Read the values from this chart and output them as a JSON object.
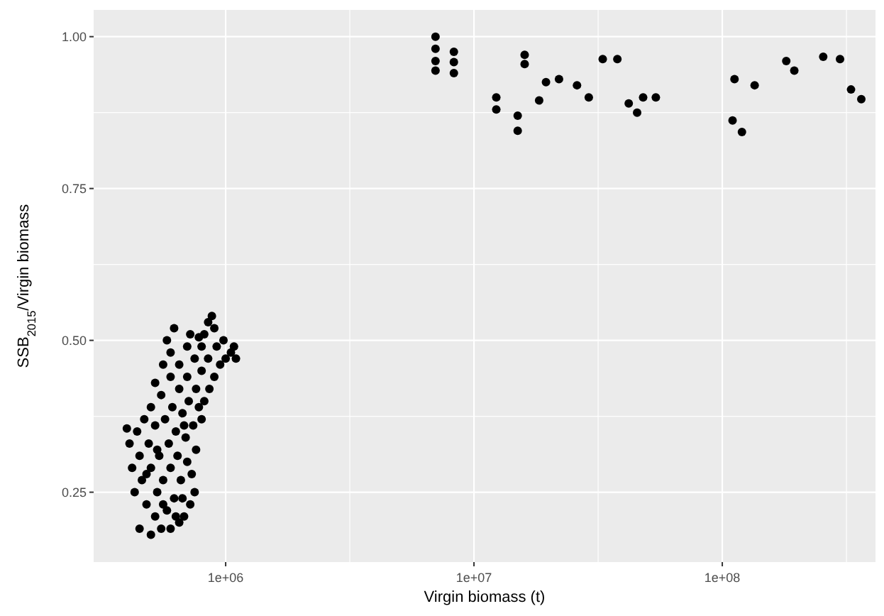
{
  "chart_data": {
    "type": "scatter",
    "xlabel": "Virgin biomass (t)",
    "ylabel": "SSB$_{2015}$/Virgin biomass",
    "log": "x",
    "grid": true,
    "marker": "circle",
    "xlim": [
      294000,
      414000000
    ],
    "ylim": [
      0.135,
      1.044
    ],
    "xticks": [
      {
        "value": 1000000,
        "label": "1e+06"
      },
      {
        "value": 3162278,
        "label": null
      },
      {
        "value": 10000000,
        "label": "1e+07"
      },
      {
        "value": 31622777,
        "label": null
      },
      {
        "value": 100000000,
        "label": "1e+08"
      },
      {
        "value": 316227766,
        "label": null
      }
    ],
    "yticks": [
      {
        "value": 0.25,
        "label": "0.25"
      },
      {
        "value": 0.375,
        "label": null
      },
      {
        "value": 0.5,
        "label": "0.50"
      },
      {
        "value": 0.625,
        "label": null
      },
      {
        "value": 0.75,
        "label": "0.75"
      },
      {
        "value": 0.875,
        "label": null
      },
      {
        "value": 1.0,
        "label": "1.00"
      }
    ],
    "series": [
      {
        "color": "#000000",
        "x": [
          450000,
          500000,
          550000,
          600000,
          650000,
          520000,
          680000,
          480000,
          580000,
          720000,
          430000,
          530000,
          620000,
          750000,
          460000,
          560000,
          660000,
          730000,
          420000,
          500000,
          600000,
          700000,
          450000,
          540000,
          640000,
          760000,
          410000,
          490000,
          590000,
          690000,
          440000,
          520000,
          630000,
          740000,
          400000,
          470000,
          570000,
          670000,
          800000,
          500000,
          610000,
          710000,
          820000,
          550000,
          650000,
          760000,
          860000,
          520000,
          600000,
          700000,
          800000,
          900000,
          560000,
          650000,
          750000,
          850000,
          950000,
          600000,
          700000,
          800000,
          920000,
          1000000,
          620000,
          720000,
          820000,
          900000,
          880000,
          580000,
          980000,
          1050000,
          850000,
          780000,
          680000,
          780000,
          530000,
          670000,
          480000,
          560000,
          630000,
          1100000,
          1080000,
          7000000,
          7000000,
          7000000,
          7000000,
          8300000,
          8300000,
          8300000,
          16000000,
          16000000,
          19500000,
          22000000,
          26000000,
          29000000,
          33000000,
          37800000,
          12300000,
          12300000,
          18300000,
          15000000,
          15000000,
          42000000,
          45400000,
          48000000,
          54000000,
          112000000,
          135000000,
          110000000,
          120000000,
          181000000,
          195000000,
          255000000,
          298000000,
          330000000,
          363000000
        ],
        "values": [
          0.19,
          0.18,
          0.19,
          0.19,
          0.2,
          0.21,
          0.21,
          0.23,
          0.22,
          0.23,
          0.25,
          0.25,
          0.24,
          0.25,
          0.27,
          0.27,
          0.27,
          0.28,
          0.29,
          0.29,
          0.29,
          0.3,
          0.31,
          0.31,
          0.31,
          0.32,
          0.33,
          0.33,
          0.33,
          0.34,
          0.35,
          0.36,
          0.35,
          0.36,
          0.355,
          0.37,
          0.37,
          0.38,
          0.37,
          0.39,
          0.39,
          0.4,
          0.4,
          0.41,
          0.42,
          0.42,
          0.42,
          0.43,
          0.44,
          0.44,
          0.45,
          0.44,
          0.46,
          0.46,
          0.47,
          0.47,
          0.46,
          0.48,
          0.49,
          0.49,
          0.49,
          0.47,
          0.52,
          0.51,
          0.51,
          0.52,
          0.54,
          0.5,
          0.5,
          0.48,
          0.53,
          0.505,
          0.36,
          0.39,
          0.32,
          0.24,
          0.28,
          0.23,
          0.21,
          0.47,
          0.49,
          1.0,
          0.98,
          0.96,
          0.944,
          0.975,
          0.958,
          0.94,
          0.97,
          0.955,
          0.925,
          0.93,
          0.92,
          0.9,
          0.963,
          0.963,
          0.9,
          0.88,
          0.895,
          0.87,
          0.845,
          0.89,
          0.875,
          0.9,
          0.9,
          0.93,
          0.92,
          0.862,
          0.843,
          0.96,
          0.944,
          0.967,
          0.963,
          0.913,
          0.897
        ]
      }
    ]
  }
}
